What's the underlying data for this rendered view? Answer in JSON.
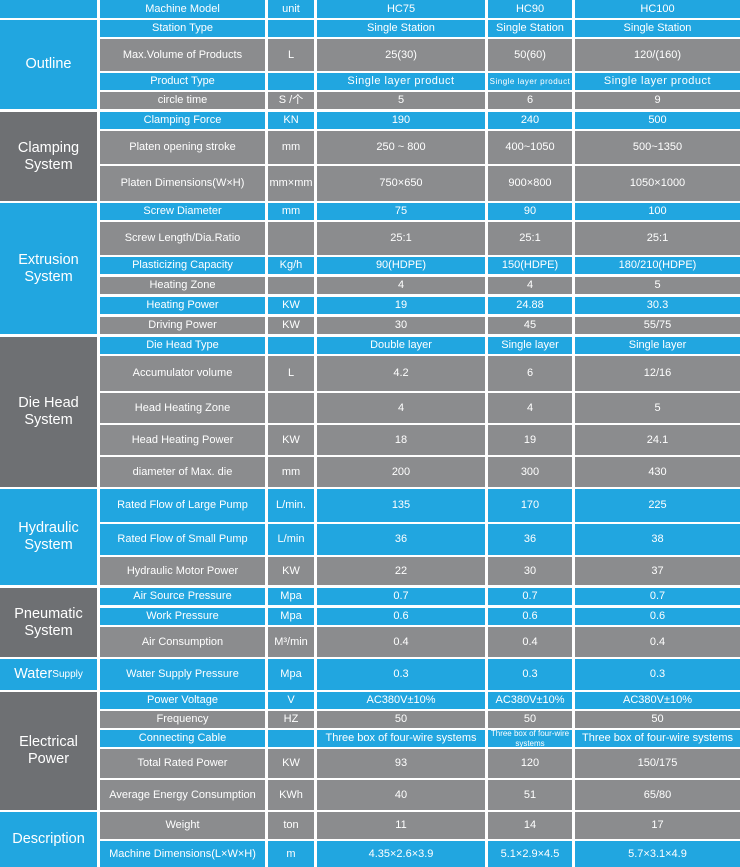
{
  "header": {
    "param": "Machine Model",
    "unit": "unit",
    "models": [
      "HC75",
      "HC90",
      "HC100"
    ]
  },
  "sections": [
    {
      "title": "Outline",
      "rows": [
        {
          "param": "Station Type",
          "unit": "",
          "values": [
            "Single Station",
            "Single Station",
            "Single Station"
          ]
        },
        {
          "param": "Max.Volume of Products",
          "unit": "L",
          "values": [
            "25(30)",
            "50(60)",
            "120/(160)"
          ]
        },
        {
          "param": "Product Type",
          "unit": "",
          "values": [
            "Single layer product",
            "Single layer product",
            "Single layer product"
          ]
        },
        {
          "param": "circle time",
          "unit": "S /个",
          "values": [
            "5",
            "6",
            "9"
          ]
        }
      ]
    },
    {
      "title": "Clamping System",
      "rows": [
        {
          "param": "Clamping Force",
          "unit": "KN",
          "values": [
            "190",
            "240",
            "500"
          ]
        },
        {
          "param": "Platen opening stroke",
          "unit": "mm",
          "values": [
            "250 ~ 800",
            "400~1050",
            "500~1350"
          ]
        },
        {
          "param": "Platen Dimensions(W×H)",
          "unit": "mm×mm",
          "values": [
            "750×650",
            "900×800",
            "1050×1000"
          ]
        }
      ]
    },
    {
      "title": "Extrusion System",
      "rows": [
        {
          "param": "Screw Diameter",
          "unit": "mm",
          "values": [
            "75",
            "90",
            "100"
          ]
        },
        {
          "param": "Screw Length/Dia.Ratio",
          "unit": "",
          "values": [
            "25:1",
            "25:1",
            "25:1"
          ]
        },
        {
          "param": "Plasticizing Capacity",
          "unit": "Kg/h",
          "values": [
            "90(HDPE)",
            "150(HDPE)",
            "180/210(HDPE)"
          ]
        },
        {
          "param": "Heating Zone",
          "unit": "",
          "values": [
            "4",
            "4",
            "5"
          ]
        },
        {
          "param": "Heating Power",
          "unit": "KW",
          "values": [
            "19",
            "24.88",
            "30.3"
          ]
        },
        {
          "param": "Driving Power",
          "unit": "KW",
          "values": [
            "30",
            "45",
            "55/75"
          ]
        }
      ]
    },
    {
      "title": "Die Head System",
      "rows": [
        {
          "param": "Die Head Type",
          "unit": "",
          "values": [
            "Double layer",
            "Single layer",
            "Single layer"
          ]
        },
        {
          "param": "Accumulator volume",
          "unit": "L",
          "values": [
            "4.2",
            "6",
            "12/16"
          ]
        },
        {
          "param": "Head Heating Zone",
          "unit": "",
          "values": [
            "4",
            "4",
            "5"
          ]
        },
        {
          "param": "Head Heating Power",
          "unit": "KW",
          "values": [
            "18",
            "19",
            "24.1"
          ]
        },
        {
          "param": "diameter of Max. die",
          "unit": "mm",
          "values": [
            "200",
            "300",
            "430"
          ]
        }
      ]
    },
    {
      "title": "Hydraulic System",
      "rows": [
        {
          "param": "Rated Flow of Large Pump",
          "unit": "L/min.",
          "values": [
            "135",
            "170",
            "225"
          ]
        },
        {
          "param": "Rated Flow of Small Pump",
          "unit": "L/min",
          "values": [
            "36",
            "36",
            "38"
          ]
        },
        {
          "param": "Hydraulic Motor Power",
          "unit": "KW",
          "values": [
            "22",
            "30",
            "37"
          ]
        }
      ]
    },
    {
      "title": "Pneumatic System",
      "rows": [
        {
          "param": "Air Source Pressure",
          "unit": "Mpa",
          "values": [
            "0.7",
            "0.7",
            "0.7"
          ]
        },
        {
          "param": "Work Pressure",
          "unit": "Mpa",
          "values": [
            "0.6",
            "0.6",
            "0.6"
          ]
        },
        {
          "param": "Air Consumption",
          "unit": "M³/min",
          "values": [
            "0.4",
            "0.4",
            "0.4"
          ]
        }
      ]
    },
    {
      "title": "Water",
      "title_small": "Supply",
      "rows": [
        {
          "param": "Water Supply Pressure",
          "unit": "Mpa",
          "values": [
            "0.3",
            "0.3",
            "0.3"
          ]
        }
      ]
    },
    {
      "title": "Electrical Power",
      "rows": [
        {
          "param": "Power Voltage",
          "unit": "V",
          "values": [
            "AC380V±10%",
            "AC380V±10%",
            "AC380V±10%"
          ]
        },
        {
          "param": "Frequency",
          "unit": "HZ",
          "values": [
            "50",
            "50",
            "50"
          ]
        },
        {
          "param": "Connecting Cable",
          "unit": "",
          "values": [
            "Three box of four-wire systems",
            "Three box of four-wire systems",
            "Three box of four-wire systems"
          ]
        },
        {
          "param": "Total Rated Power",
          "unit": "KW",
          "values": [
            "93",
            "120",
            "150/175"
          ]
        },
        {
          "param": "Average Energy Consumption",
          "unit": "KWh",
          "values": [
            "40",
            "51",
            "65/80"
          ]
        }
      ]
    },
    {
      "title": "Description",
      "rows": [
        {
          "param": "Weight",
          "unit": "ton",
          "values": [
            "11",
            "14",
            "17"
          ]
        },
        {
          "param": "Machine Dimensions(L×W×H)",
          "unit": "m",
          "values": [
            "4.35×2.6×3.9",
            "5.1×2.9×4.5",
            "5.7×3.1×4.9"
          ]
        }
      ]
    }
  ]
}
